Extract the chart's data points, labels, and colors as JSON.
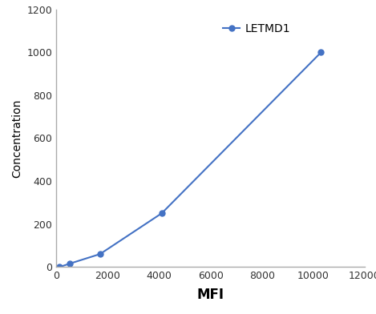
{
  "x": [
    128,
    512,
    1700,
    4100,
    10300
  ],
  "y": [
    0,
    15,
    60,
    250,
    1000
  ],
  "line_color": "#4472C4",
  "marker": "o",
  "marker_size": 5,
  "xlabel": "MFI",
  "ylabel": "Concentration",
  "xlim": [
    0,
    12000
  ],
  "ylim": [
    0,
    1200
  ],
  "xticks": [
    0,
    2000,
    4000,
    6000,
    8000,
    10000,
    12000
  ],
  "yticks": [
    0,
    200,
    400,
    600,
    800,
    1000,
    1200
  ],
  "legend_label": "LETMD1",
  "xlabel_fontsize": 12,
  "ylabel_fontsize": 10,
  "legend_fontsize": 10,
  "tick_fontsize": 9,
  "background_color": "#ffffff",
  "spine_color": "#aaaaaa",
  "linewidth": 1.5
}
